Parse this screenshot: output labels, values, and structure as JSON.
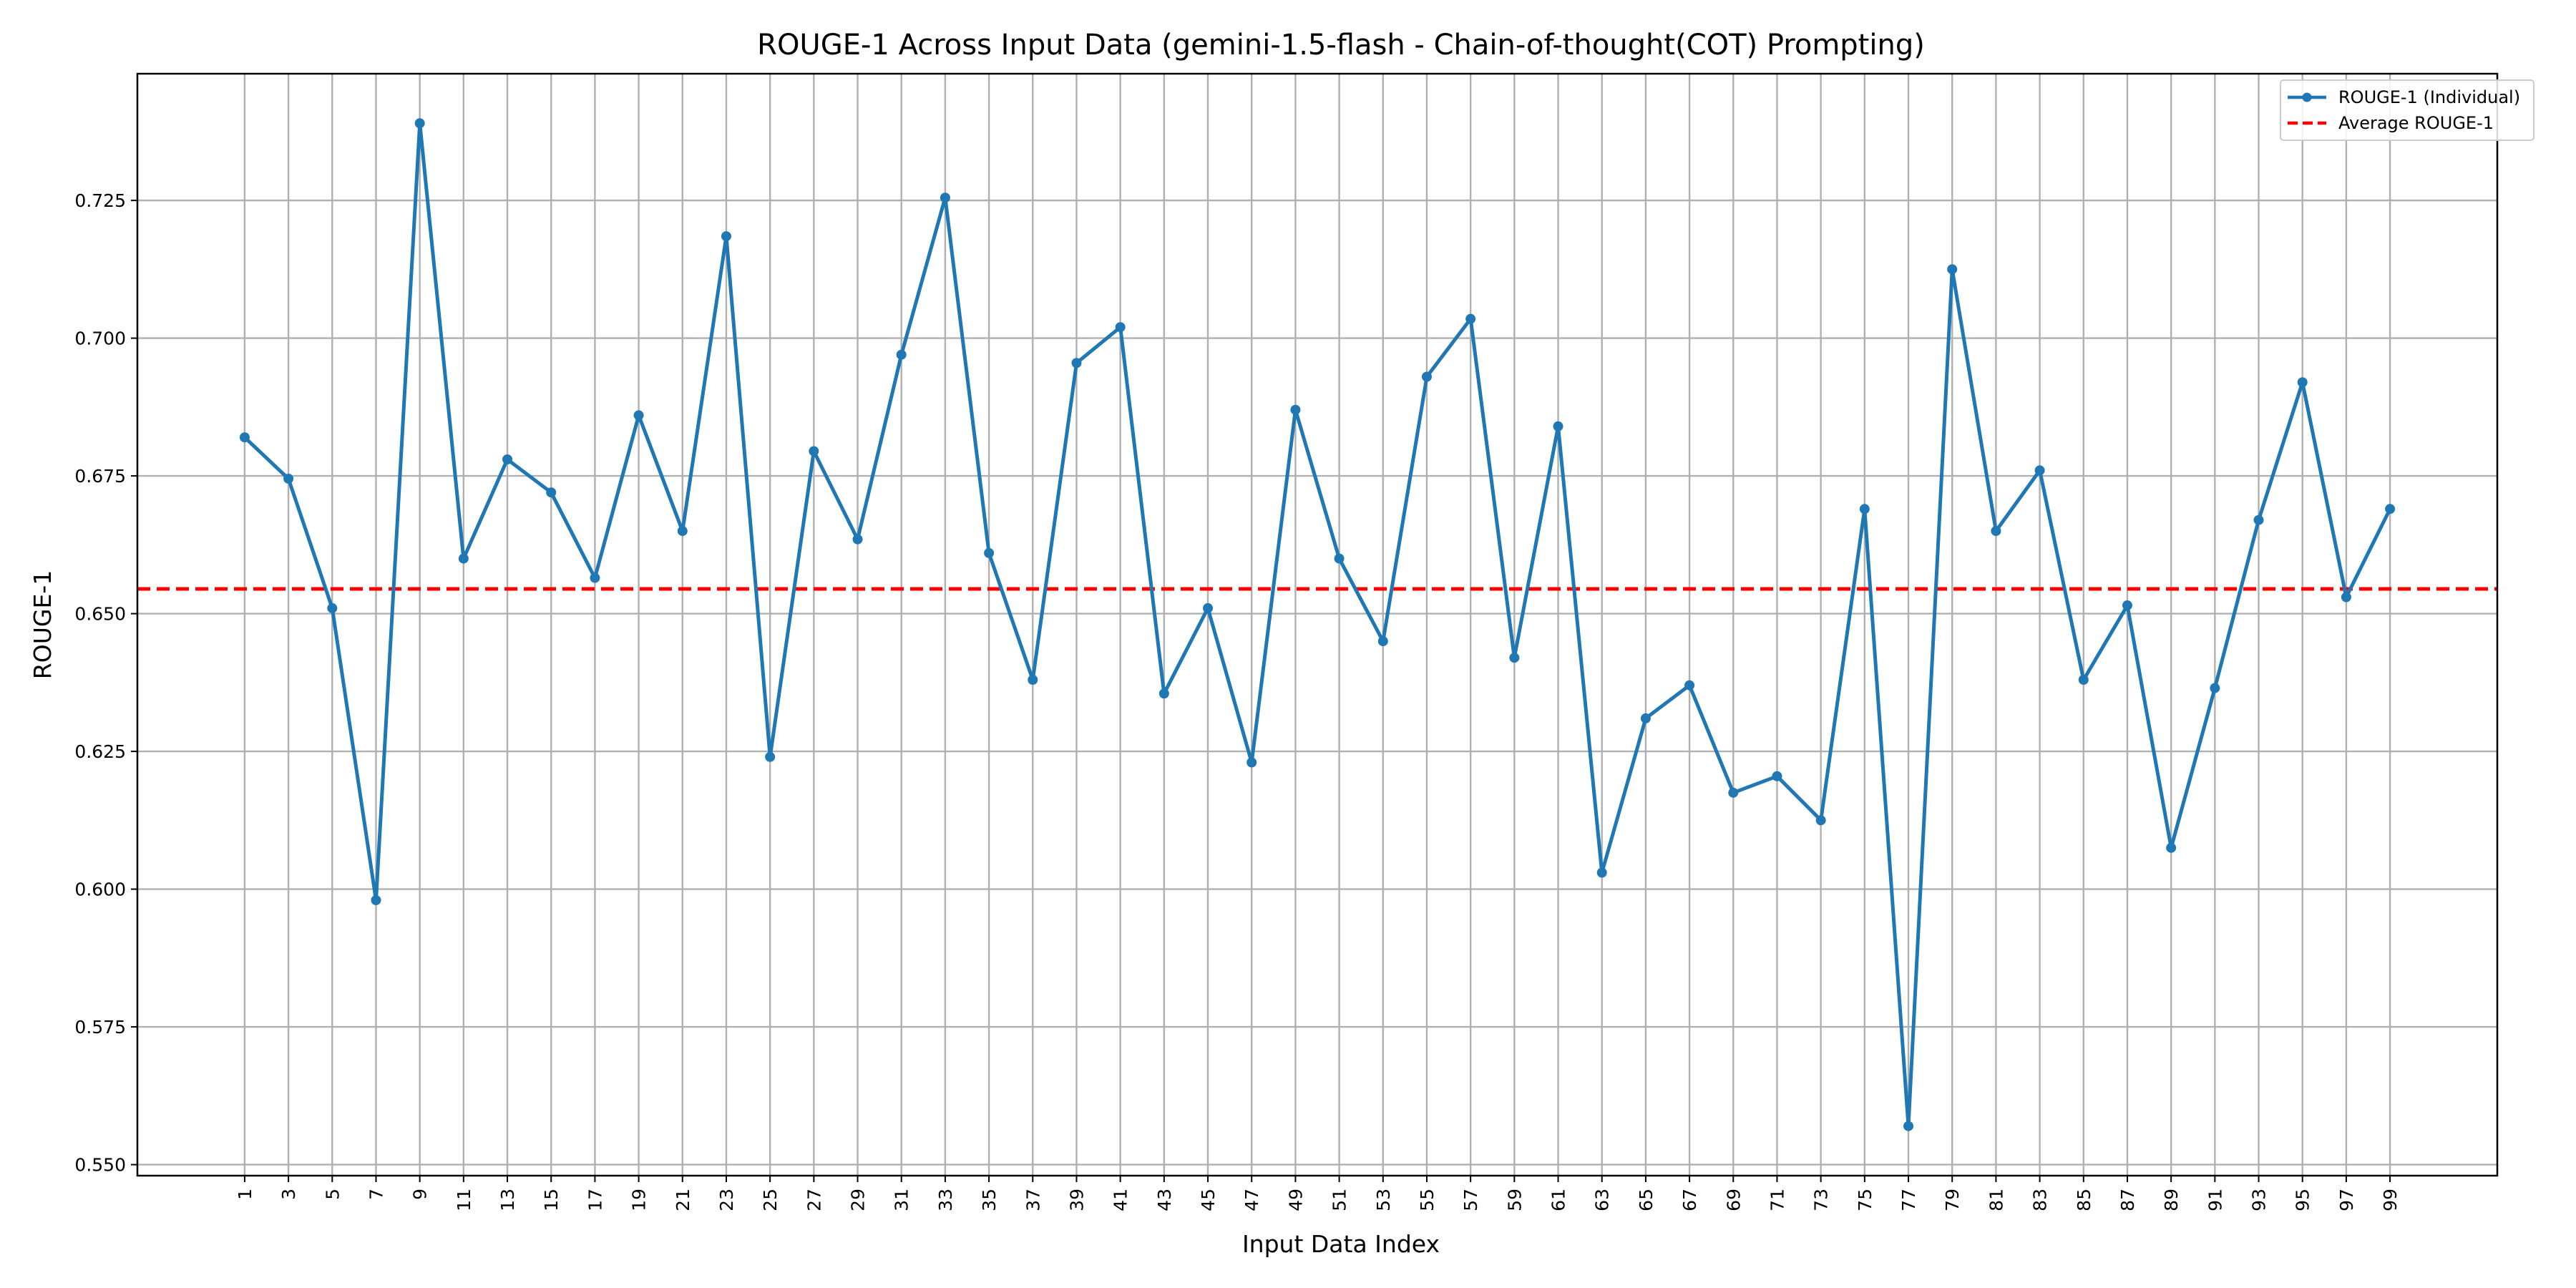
{
  "chart_data": {
    "type": "line",
    "title": "ROUGE-1 Across Input Data (gemini-1.5-flash - Chain-of-thought(COT) Prompting)",
    "xlabel": "Input Data Index",
    "ylabel": "ROUGE-1",
    "x": [
      1,
      3,
      5,
      7,
      9,
      11,
      13,
      15,
      17,
      19,
      21,
      23,
      25,
      27,
      29,
      31,
      33,
      35,
      37,
      39,
      41,
      43,
      45,
      47,
      49,
      51,
      53,
      55,
      57,
      59,
      61,
      63,
      65,
      67,
      69,
      71,
      73,
      75,
      77,
      79,
      81,
      83,
      85,
      87,
      89,
      91,
      93,
      95,
      97,
      99
    ],
    "series": [
      {
        "name": "ROUGE-1 (Individual)",
        "color": "#1f77b4",
        "values": [
          0.682,
          0.6745,
          0.651,
          0.598,
          0.739,
          0.66,
          0.678,
          0.672,
          0.6565,
          0.686,
          0.665,
          0.7185,
          0.624,
          0.6795,
          0.6635,
          0.697,
          0.7255,
          0.661,
          0.638,
          0.6955,
          0.702,
          0.6355,
          0.651,
          0.623,
          0.687,
          0.66,
          0.645,
          0.693,
          0.7035,
          0.642,
          0.684,
          0.603,
          0.631,
          0.637,
          0.6175,
          0.6205,
          0.6125,
          0.669,
          0.557,
          0.7125,
          0.665,
          0.676,
          0.638,
          0.6515,
          0.6075,
          0.6365,
          0.667,
          0.692,
          0.653,
          0.669
        ]
      }
    ],
    "average": {
      "name": "Average ROUGE-1",
      "value": 0.6545,
      "color": "#ff0000"
    },
    "xlim": [
      -3.9,
      103.9
    ],
    "ylim": [
      0.548,
      0.748
    ],
    "yticks": [
      0.55,
      0.575,
      0.6,
      0.625,
      0.65,
      0.675,
      0.7,
      0.725
    ],
    "ytick_labels": [
      "0.550",
      "0.575",
      "0.600",
      "0.625",
      "0.650",
      "0.675",
      "0.700",
      "0.725"
    ],
    "grid": true,
    "legend_position": "top-right"
  }
}
